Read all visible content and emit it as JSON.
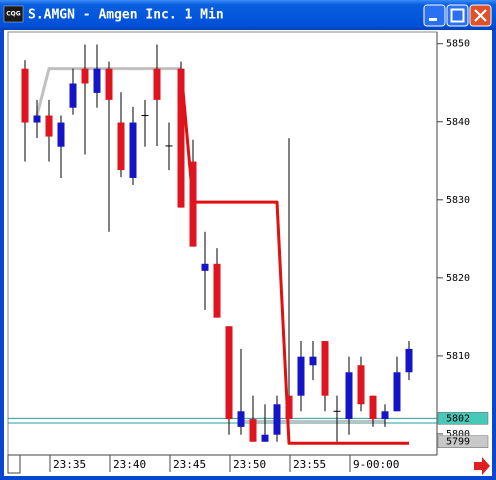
{
  "chart_data": {
    "type": "candlestick",
    "app_icon": "CQG",
    "title": "S.AMGN - Amgen Inc. 1 Min",
    "categories": [
      null,
      null,
      "23:35",
      null,
      null,
      null,
      null,
      "23:40",
      null,
      null,
      null,
      null,
      "23:45",
      null,
      null,
      null,
      null,
      "23:50",
      null,
      null,
      null,
      null,
      "23:55",
      null,
      null,
      null,
      null,
      "9-00:00",
      null,
      null,
      null,
      null,
      null
    ],
    "open": [
      5846.8,
      5839.9,
      5840.8,
      5836.8,
      5841.8,
      5846.8,
      5843.7,
      5846.8,
      5839.9,
      5832.8,
      5840.8,
      5846.8,
      5836.9,
      5846.8,
      5834.9,
      5820.9,
      5821.8,
      5813.8,
      5800.9,
      5801.9,
      5799.0,
      5799.9,
      5804.9,
      5804.9,
      5808.8,
      5811.9,
      5802.9,
      5801.9,
      5808.8,
      5804.9,
      5801.9,
      5802.9,
      5807.9
    ],
    "high": [
      5847.9,
      5842.8,
      5842.8,
      5840.8,
      5846.8,
      5849.9,
      5849.9,
      5847.7,
      5843.8,
      5841.9,
      5842.8,
      5849.9,
      5839.9,
      5847.7,
      5837.7,
      5825.9,
      5823.8,
      5813.8,
      5810.9,
      5804.9,
      5803.8,
      5804.9,
      5837.9,
      5811.9,
      5811.9,
      5811.9,
      5804.9,
      5809.9,
      5809.9,
      5804.9,
      5803.8,
      5809.9,
      5811.9
    ],
    "low": [
      5834.9,
      5837.9,
      5834.9,
      5832.8,
      5840.9,
      5835.8,
      5841.8,
      5825.9,
      5832.9,
      5831.9,
      5836.8,
      5836.9,
      5833.8,
      5829.0,
      5824.0,
      5815.9,
      5814.9,
      5799.9,
      5799.9,
      5799.0,
      5799.0,
      5799.0,
      5801.9,
      5802.9,
      5806.9,
      5802.9,
      5799.0,
      5799.9,
      5802.9,
      5800.9,
      5800.9,
      5802.9,
      5806.9
    ],
    "close": [
      5839.9,
      5840.8,
      5838.1,
      5839.9,
      5844.9,
      5844.9,
      5846.8,
      5842.8,
      5833.8,
      5839.9,
      5840.8,
      5842.8,
      5836.9,
      5829.0,
      5824.0,
      5821.8,
      5814.9,
      5801.9,
      5802.9,
      5799.0,
      5799.9,
      5803.8,
      5801.9,
      5809.9,
      5809.9,
      5804.9,
      5802.9,
      5807.9,
      5803.8,
      5801.9,
      5802.9,
      5807.9,
      5810.9
    ],
    "up_color": "#1414c8",
    "down_color": "#e0141e",
    "lines": [
      {
        "color": "#c0c0c0",
        "values": [
          null,
          5840.8,
          5846.8,
          5846.8,
          5846.8,
          5846.8,
          5846.8,
          5846.8,
          5846.8,
          5846.8,
          5846.8,
          5846.8,
          5846.8,
          5846.8,
          null,
          null,
          null,
          null,
          5801.6,
          5801.6,
          5801.6,
          5801.6,
          5801.6,
          5801.6,
          5801.6,
          5801.6,
          5801.6,
          5801.6,
          5801.6,
          5801.6,
          5801.6,
          null,
          null
        ]
      },
      {
        "color": "#e01010",
        "values": [
          null,
          null,
          null,
          null,
          null,
          null,
          null,
          null,
          null,
          null,
          null,
          null,
          null,
          5846.8,
          5829.7,
          5829.7,
          5829.7,
          5829.7,
          5829.7,
          5829.7,
          5829.7,
          5829.7,
          5798.8,
          5798.8,
          5798.8,
          5798.8,
          5798.8,
          5798.8,
          5798.8,
          5798.8,
          5798.8,
          5798.8,
          5798.8
        ]
      }
    ],
    "hlines": {
      "color": "#20a0a0",
      "values": [
        5802,
        5801.4
      ]
    },
    "price_markers": [
      {
        "value": 5802,
        "color": "#48c8b8"
      },
      {
        "value": 5799,
        "color": "#c8c8c8"
      }
    ],
    "ylim": [
      5797.3,
      5851.5
    ],
    "yticks": [
      5800,
      5810,
      5820,
      5830,
      5840,
      5850
    ]
  }
}
